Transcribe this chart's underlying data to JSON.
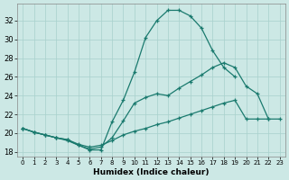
{
  "bg_color": "#cce8e5",
  "grid_color": "#a8d0cc",
  "line_color": "#1a7a6e",
  "xlabel": "Humidex (Indice chaleur)",
  "xlim": [
    -0.5,
    23.5
  ],
  "ylim": [
    17.5,
    33.8
  ],
  "xticks": [
    0,
    1,
    2,
    3,
    4,
    5,
    6,
    7,
    8,
    9,
    10,
    11,
    12,
    13,
    14,
    15,
    16,
    17,
    18,
    19,
    20,
    21,
    22,
    23
  ],
  "yticks": [
    18,
    20,
    22,
    24,
    26,
    28,
    30,
    32
  ],
  "curve1_x": [
    0,
    1,
    2,
    3,
    4,
    5,
    6,
    7,
    8,
    9,
    10,
    11,
    12,
    13,
    14,
    15,
    16,
    17,
    18,
    19
  ],
  "curve1_y": [
    20.5,
    20.1,
    19.8,
    19.5,
    19.2,
    18.7,
    18.2,
    18.2,
    21.2,
    23.5,
    26.5,
    30.2,
    32.0,
    33.1,
    33.1,
    32.5,
    31.2,
    28.8,
    27.0,
    26.0
  ],
  "curve2_x": [
    0,
    1,
    2,
    3,
    4,
    5,
    6,
    7,
    8,
    9,
    10,
    11,
    12,
    13,
    14,
    15,
    16,
    17,
    18,
    19,
    20,
    21,
    22
  ],
  "curve2_y": [
    20.5,
    20.1,
    19.8,
    19.5,
    19.3,
    18.7,
    18.3,
    18.5,
    19.5,
    21.3,
    23.2,
    23.8,
    24.2,
    24.0,
    24.8,
    25.5,
    26.2,
    27.0,
    27.5,
    27.0,
    25.0,
    24.2,
    21.5
  ],
  "curve3_x": [
    0,
    1,
    2,
    3,
    4,
    5,
    6,
    7,
    8,
    9,
    10,
    11,
    12,
    13,
    14,
    15,
    16,
    17,
    18,
    19,
    20,
    21,
    22,
    23
  ],
  "curve3_y": [
    20.5,
    20.1,
    19.8,
    19.5,
    19.3,
    18.8,
    18.5,
    18.7,
    19.2,
    19.8,
    20.2,
    20.5,
    20.9,
    21.2,
    21.6,
    22.0,
    22.4,
    22.8,
    23.2,
    23.5,
    21.5,
    21.5,
    21.5,
    21.5
  ]
}
